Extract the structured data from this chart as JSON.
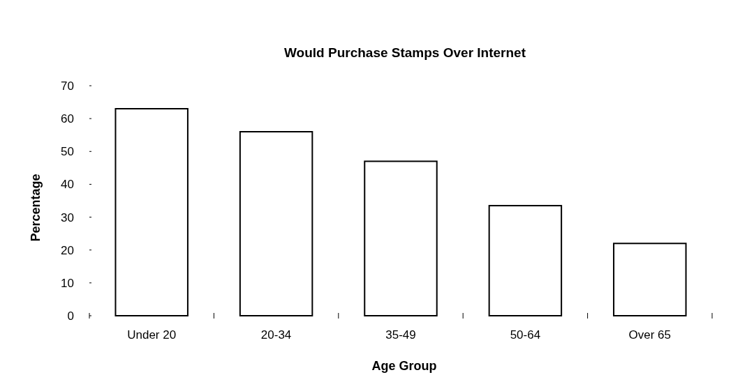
{
  "chart_data": {
    "type": "bar",
    "title": "Would Purchase Stamps Over Internet",
    "xlabel": "Age Group",
    "ylabel": "Percentage",
    "categories": [
      "Under 20",
      "20-34",
      "35-49",
      "50-64",
      "Over 65"
    ],
    "values": [
      63,
      56,
      47,
      33.5,
      22
    ],
    "color": "#ffffff",
    "ylim": [
      0,
      70
    ],
    "yticks": [
      0,
      10,
      20,
      30,
      40,
      50,
      60,
      70
    ]
  }
}
